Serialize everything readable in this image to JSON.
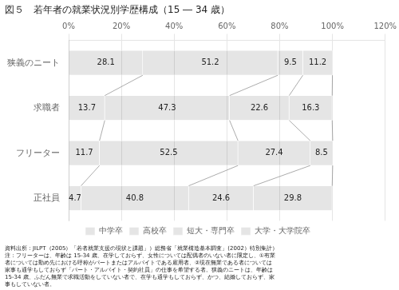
{
  "chart_data": {
    "type": "bar",
    "orientation": "horizontal",
    "stacked": true,
    "title": "図５　若年者の就業状況別学歴構成（15 ― 34 歳）",
    "categories": [
      "狭義のニート",
      "求職者",
      "フリーター",
      "正社員"
    ],
    "series": [
      {
        "name": "中学卒",
        "values": [
          28.1,
          13.7,
          11.7,
          4.7
        ]
      },
      {
        "name": "高校卒",
        "values": [
          51.2,
          47.3,
          52.5,
          40.8
        ]
      },
      {
        "name": "短大・専門卒",
        "values": [
          9.5,
          22.6,
          27.4,
          24.6
        ]
      },
      {
        "name": "大学・大学院卒",
        "values": [
          11.2,
          16.3,
          8.5,
          29.8
        ]
      }
    ],
    "xlim": [
      0,
      120
    ],
    "xticks": [
      {
        "value": 0,
        "label": "0%"
      },
      {
        "value": 20,
        "label": "20%"
      },
      {
        "value": 40,
        "label": "40%"
      },
      {
        "value": 60,
        "label": "60%"
      },
      {
        "value": 80,
        "label": "80%"
      },
      {
        "value": 100,
        "label": "100%"
      },
      {
        "value": 120,
        "label": "120%"
      }
    ],
    "grid": true,
    "data_labels": true,
    "legend": "bottom",
    "annotations": [
      "資料出所：JILPT（2005）「若者就業支援の現状と課題」）総務省「就業構造基本調査」(2002）特別集計）\n注：フリーターは、年齢は 15-34 歳、在学しておらず、女性については配偶者のいない者に限定し、①有業\n者については勤め先における呼称がパートまたはアルバイトである雇用者、②現在無業である者については\n家事も通学もしておらず「パート・アルバイト・契約社員」の仕事を希望する者。狭義のニートは、年齢は\n15-34 歳、ふだん無業で求職活動をしていない者で、在学も通学もしておらず、かつ、結婚しておらず、家\n事もしていない者。"
    ]
  }
}
